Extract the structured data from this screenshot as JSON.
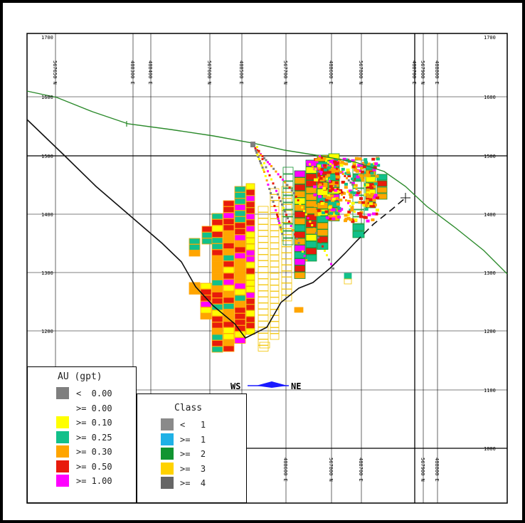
{
  "map": {
    "elevation_labels": [
      "1700",
      "1600",
      "1500",
      "1400",
      "1300",
      "1200",
      "1100",
      "1000"
    ],
    "gridlines_vertical_top": [
      "567650 N",
      "488300 E",
      "488400 E",
      "567600 N",
      "488500 E",
      "567700 N",
      "488600 E",
      "567800 N",
      "488700 E",
      "567900 N",
      "488800 E"
    ],
    "gridlines_vertical_bottom": [
      "488600 E",
      "567800 N",
      "488700 E",
      "567900 N",
      "488800 E"
    ],
    "compass": {
      "left": "WS",
      "right": "NE"
    }
  },
  "legend_au": {
    "title": "AU (gpt)",
    "items": [
      {
        "label": "<  0.00",
        "color": "#7f7f7f"
      },
      {
        "label": ">= 0.00",
        "color": "#ffffff"
      },
      {
        "label": ">= 0.10",
        "color": "#ffff00"
      },
      {
        "label": ">= 0.25",
        "color": "#12c08a"
      },
      {
        "label": ">= 0.30",
        "color": "#ffa500"
      },
      {
        "label": ">= 0.50",
        "color": "#e81b0c"
      },
      {
        "label": ">= 1.00",
        "color": "#ff00ff"
      }
    ]
  },
  "legend_class": {
    "title": "Class",
    "items": [
      {
        "label": "<   1",
        "color": "#8a8a8a"
      },
      {
        "label": ">=  1",
        "color": "#1fb1e6"
      },
      {
        "label": ">=  2",
        "color": "#119431"
      },
      {
        "label": ">=  3",
        "color": "#ffd200"
      },
      {
        "label": ">=  4",
        "color": "#666666"
      }
    ]
  },
  "colors": {
    "topography": "#2b8a2b",
    "pit_line": "#111111",
    "compass_arrow": "#1a1aff"
  }
}
